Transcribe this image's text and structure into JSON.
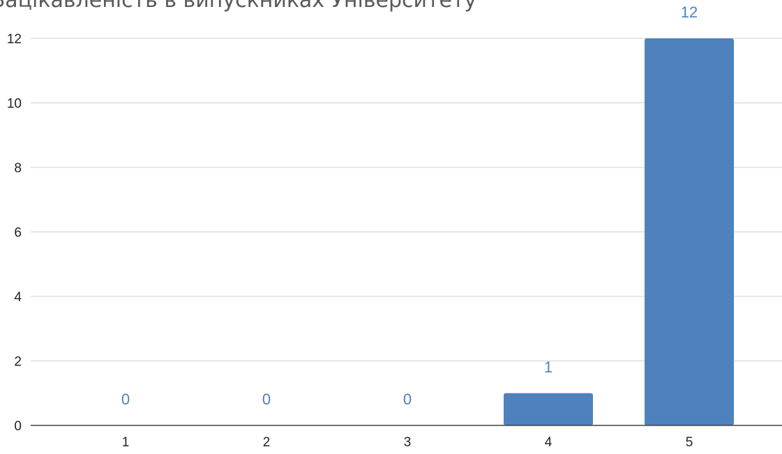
{
  "chart_data": {
    "type": "bar",
    "title": "Зацікавленість в випускниках Університету",
    "xlabel": "",
    "ylabel": "",
    "categories": [
      "1",
      "2",
      "3",
      "4",
      "5"
    ],
    "values": [
      0,
      0,
      0,
      1,
      12
    ],
    "data_labels": [
      "0",
      "0",
      "0",
      "1",
      "12"
    ],
    "yticks": [
      "0",
      "2",
      "4",
      "6",
      "8",
      "10",
      "12"
    ],
    "ylim": [
      0,
      12
    ],
    "grid": true,
    "legend": "none",
    "colors": {
      "bar": "#4f81bd",
      "data_label": "#4f81bd",
      "grid": "#d9d9d9",
      "title": "#595959"
    }
  }
}
